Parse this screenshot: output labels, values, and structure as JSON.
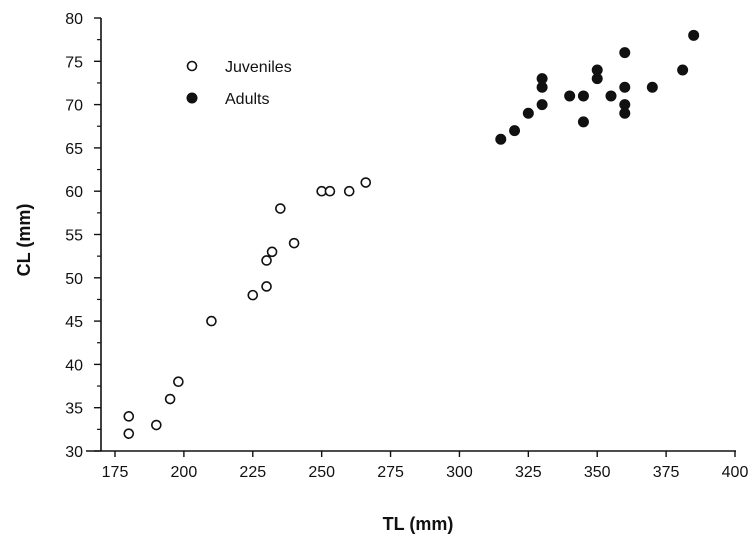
{
  "chart_data": {
    "type": "scatter",
    "xlabel": "TL (mm)",
    "ylabel": "CL (mm)",
    "xlim": [
      175,
      400
    ],
    "ylim": [
      30,
      80
    ],
    "x_ticks": [
      175,
      200,
      225,
      250,
      275,
      300,
      325,
      350,
      375,
      400
    ],
    "y_ticks": [
      30,
      35,
      40,
      45,
      50,
      55,
      60,
      65,
      70,
      75,
      80
    ],
    "grid": false,
    "legend_position": "top-left",
    "series": [
      {
        "name": "Juveniles",
        "marker": "open-circle",
        "color": "#111111",
        "points": [
          {
            "x": 180,
            "y": 34
          },
          {
            "x": 180,
            "y": 32
          },
          {
            "x": 190,
            "y": 33
          },
          {
            "x": 195,
            "y": 36
          },
          {
            "x": 198,
            "y": 38
          },
          {
            "x": 210,
            "y": 45
          },
          {
            "x": 225,
            "y": 48
          },
          {
            "x": 230,
            "y": 49
          },
          {
            "x": 230,
            "y": 52
          },
          {
            "x": 232,
            "y": 53
          },
          {
            "x": 235,
            "y": 58
          },
          {
            "x": 240,
            "y": 54
          },
          {
            "x": 250,
            "y": 60
          },
          {
            "x": 253,
            "y": 60
          },
          {
            "x": 260,
            "y": 60
          },
          {
            "x": 266,
            "y": 61
          }
        ]
      },
      {
        "name": "Adults",
        "marker": "filled-circle",
        "color": "#111111",
        "points": [
          {
            "x": 315,
            "y": 66
          },
          {
            "x": 320,
            "y": 67
          },
          {
            "x": 325,
            "y": 69
          },
          {
            "x": 330,
            "y": 70
          },
          {
            "x": 330,
            "y": 72
          },
          {
            "x": 330,
            "y": 73
          },
          {
            "x": 340,
            "y": 71
          },
          {
            "x": 345,
            "y": 71
          },
          {
            "x": 345,
            "y": 68
          },
          {
            "x": 350,
            "y": 73
          },
          {
            "x": 350,
            "y": 74
          },
          {
            "x": 355,
            "y": 71
          },
          {
            "x": 360,
            "y": 76
          },
          {
            "x": 360,
            "y": 72
          },
          {
            "x": 360,
            "y": 70
          },
          {
            "x": 360,
            "y": 69
          },
          {
            "x": 370,
            "y": 72
          },
          {
            "x": 381,
            "y": 74
          },
          {
            "x": 385,
            "y": 78
          }
        ]
      }
    ]
  }
}
